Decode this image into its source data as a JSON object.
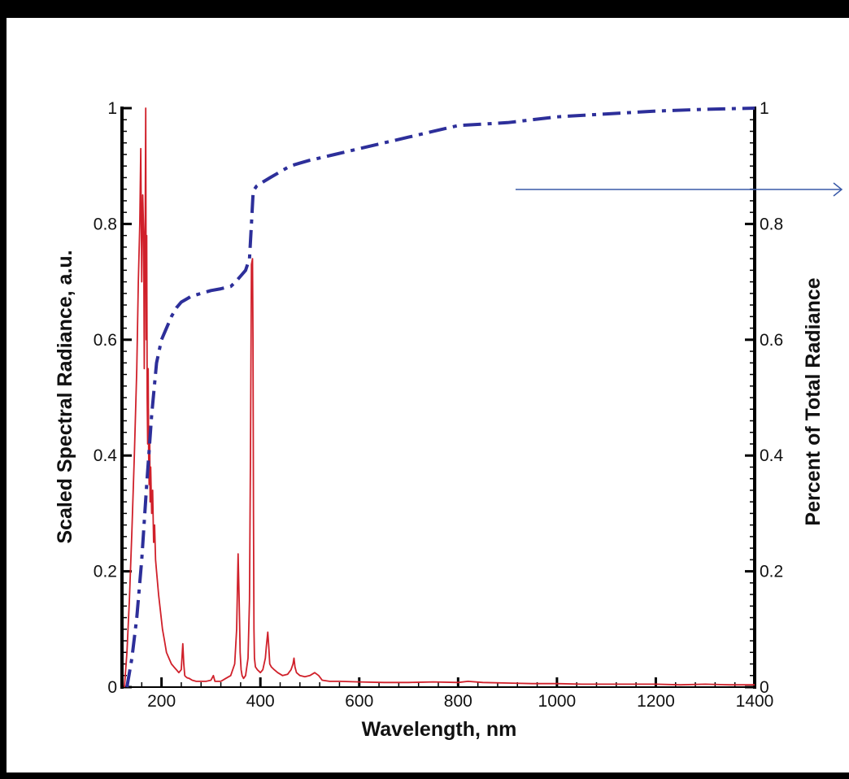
{
  "chart_data": {
    "type": "line",
    "xlabel": "Wavelength, nm",
    "ylabel": "Scaled Spectral Radiance, a.u.",
    "y2label": "Percent of Total Radiance",
    "xlim": [
      120,
      1400
    ],
    "ylim": [
      0,
      1
    ],
    "y2lim": [
      0,
      1
    ],
    "x_ticks": [
      200,
      400,
      600,
      800,
      1000,
      1200,
      1400
    ],
    "x_tick_labels": [
      "200",
      "400",
      "600",
      "800",
      "1000",
      "1200",
      "1400"
    ],
    "y_ticks": [
      0,
      0.2,
      0.4,
      0.6,
      0.8,
      1
    ],
    "y_tick_labels": [
      "0",
      "0.2",
      "0.4",
      "0.6",
      "0.8",
      "1"
    ],
    "y2_ticks": [
      0,
      0.2,
      0.4,
      0.6,
      0.8,
      1
    ],
    "y2_tick_labels": [
      "0",
      "0.2",
      "0.4",
      "0.6",
      "0.8",
      "1"
    ],
    "grid": false,
    "series": [
      {
        "style": "solid",
        "color": "#d0202a",
        "axis": "left",
        "x": [
          125,
          130,
          135,
          140,
          145,
          150,
          153,
          156,
          158,
          160,
          162,
          164,
          165,
          166,
          167,
          168,
          169,
          170,
          171,
          172,
          173,
          174,
          175,
          176,
          177,
          178,
          180,
          182,
          184,
          186,
          188,
          190,
          194,
          198,
          202,
          206,
          210,
          215,
          220,
          225,
          230,
          235,
          240,
          243,
          245,
          247,
          249,
          252,
          256,
          262,
          270,
          280,
          290,
          300,
          305,
          308,
          312,
          320,
          330,
          340,
          348,
          352,
          355,
          357,
          359,
          361,
          363,
          366,
          370,
          375,
          378,
          380,
          382,
          384,
          385,
          386,
          387,
          388,
          390,
          394,
          400,
          405,
          410,
          412,
          415,
          417,
          419,
          422,
          428,
          435,
          445,
          455,
          462,
          466,
          468,
          470,
          473,
          480,
          490,
          500,
          510,
          518,
          525,
          540,
          560,
          600,
          650,
          700,
          750,
          800,
          820,
          850,
          900,
          950,
          1000,
          1050,
          1100,
          1150,
          1200,
          1250,
          1300,
          1350,
          1400
        ],
        "y": [
          0.0,
          0.06,
          0.15,
          0.27,
          0.4,
          0.55,
          0.7,
          0.8,
          0.93,
          0.7,
          0.85,
          0.78,
          0.55,
          0.72,
          0.82,
          1.0,
          0.6,
          0.78,
          0.5,
          0.42,
          0.55,
          0.4,
          0.35,
          0.45,
          0.32,
          0.38,
          0.3,
          0.34,
          0.25,
          0.28,
          0.22,
          0.2,
          0.16,
          0.13,
          0.1,
          0.08,
          0.06,
          0.05,
          0.04,
          0.035,
          0.03,
          0.025,
          0.03,
          0.075,
          0.04,
          0.02,
          0.018,
          0.016,
          0.015,
          0.012,
          0.01,
          0.01,
          0.01,
          0.012,
          0.02,
          0.01,
          0.01,
          0.01,
          0.015,
          0.02,
          0.04,
          0.1,
          0.23,
          0.15,
          0.06,
          0.03,
          0.02,
          0.015,
          0.02,
          0.05,
          0.15,
          0.4,
          0.73,
          0.74,
          0.6,
          0.3,
          0.1,
          0.05,
          0.035,
          0.03,
          0.025,
          0.03,
          0.05,
          0.07,
          0.095,
          0.07,
          0.04,
          0.035,
          0.03,
          0.025,
          0.02,
          0.022,
          0.03,
          0.04,
          0.05,
          0.035,
          0.025,
          0.02,
          0.018,
          0.02,
          0.025,
          0.02,
          0.012,
          0.01,
          0.01,
          0.009,
          0.008,
          0.008,
          0.009,
          0.008,
          0.01,
          0.008,
          0.007,
          0.006,
          0.006,
          0.005,
          0.005,
          0.005,
          0.005,
          0.004,
          0.005,
          0.004,
          0.004
        ]
      },
      {
        "style": "dash-dot",
        "color": "#2d2f9a",
        "axis": "right",
        "x": [
          130,
          140,
          150,
          160,
          170,
          180,
          190,
          200,
          210,
          220,
          230,
          240,
          250,
          260,
          280,
          300,
          320,
          340,
          350,
          360,
          370,
          378,
          382,
          385,
          388,
          392,
          400,
          410,
          420,
          440,
          460,
          480,
          500,
          550,
          600,
          700,
          800,
          900,
          1000,
          1100,
          1200,
          1300,
          1400
        ],
        "y": [
          0.0,
          0.05,
          0.12,
          0.22,
          0.35,
          0.47,
          0.56,
          0.6,
          0.62,
          0.64,
          0.655,
          0.665,
          0.67,
          0.675,
          0.68,
          0.685,
          0.688,
          0.692,
          0.7,
          0.71,
          0.72,
          0.74,
          0.8,
          0.85,
          0.86,
          0.865,
          0.87,
          0.875,
          0.88,
          0.89,
          0.9,
          0.905,
          0.91,
          0.92,
          0.93,
          0.95,
          0.97,
          0.975,
          0.985,
          0.99,
          0.995,
          0.998,
          1.0
        ]
      }
    ]
  }
}
